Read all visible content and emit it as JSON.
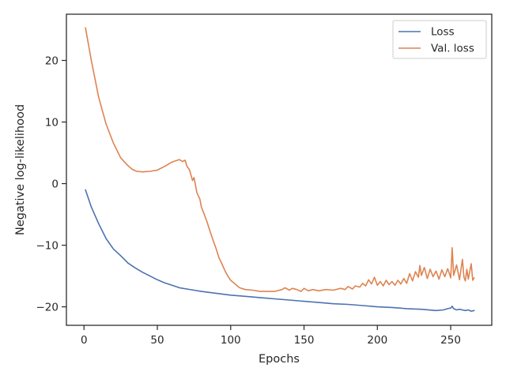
{
  "chart_data": {
    "type": "line",
    "xlabel": "Epochs",
    "ylabel": "Negative log-likelihood",
    "xlim": [
      -12,
      278
    ],
    "ylim": [
      -23,
      27.5
    ],
    "xticks": [
      0,
      50,
      100,
      150,
      200,
      250
    ],
    "yticks": [
      -20,
      -10,
      0,
      10,
      20
    ],
    "xtick_labels": [
      "0",
      "50",
      "100",
      "150",
      "200",
      "250"
    ],
    "ytick_labels": [
      "−20",
      "−10",
      "0",
      "10",
      "20"
    ],
    "legend_position": "top-right",
    "grid": false,
    "series": [
      {
        "name": "Loss",
        "color": "#4c72b0",
        "x": [
          1,
          5,
          10,
          15,
          20,
          25,
          30,
          35,
          40,
          45,
          50,
          55,
          60,
          65,
          70,
          75,
          80,
          90,
          100,
          110,
          120,
          130,
          140,
          150,
          160,
          170,
          180,
          190,
          200,
          210,
          220,
          230,
          240,
          245,
          248,
          250,
          251,
          252,
          254,
          256,
          258,
          260,
          262,
          264,
          266
        ],
        "y": [
          -1.0,
          -3.8,
          -6.5,
          -8.9,
          -10.6,
          -11.7,
          -12.9,
          -13.7,
          -14.4,
          -15.0,
          -15.6,
          -16.1,
          -16.5,
          -16.9,
          -17.1,
          -17.3,
          -17.5,
          -17.8,
          -18.1,
          -18.3,
          -18.5,
          -18.7,
          -18.9,
          -19.1,
          -19.3,
          -19.5,
          -19.6,
          -19.8,
          -20.0,
          -20.1,
          -20.3,
          -20.4,
          -20.6,
          -20.5,
          -20.3,
          -20.2,
          -19.9,
          -20.3,
          -20.5,
          -20.4,
          -20.5,
          -20.6,
          -20.5,
          -20.7,
          -20.6
        ]
      },
      {
        "name": "Val. loss",
        "color": "#dd8452",
        "x": [
          1,
          5,
          10,
          15,
          20,
          25,
          30,
          33,
          36,
          40,
          45,
          50,
          55,
          60,
          65,
          67,
          69,
          70,
          72,
          74,
          75,
          76,
          77,
          79,
          80,
          82,
          84,
          86,
          88,
          90,
          92,
          94,
          96,
          98,
          100,
          103,
          106,
          110,
          115,
          120,
          125,
          130,
          135,
          137,
          140,
          142,
          145,
          148,
          150,
          153,
          156,
          160,
          165,
          170,
          175,
          178,
          180,
          183,
          185,
          188,
          190,
          192,
          194,
          196,
          198,
          200,
          202,
          204,
          206,
          208,
          210,
          212,
          214,
          216,
          218,
          220,
          222,
          224,
          226,
          228,
          229,
          230,
          232,
          234,
          236,
          238,
          240,
          242,
          244,
          246,
          248,
          250,
          251,
          252,
          254,
          256,
          258,
          259,
          260,
          261,
          262,
          264,
          265,
          266
        ],
        "y": [
          25.3,
          20.0,
          14.0,
          9.7,
          6.6,
          4.2,
          2.9,
          2.3,
          2.0,
          1.9,
          2.0,
          2.2,
          2.8,
          3.5,
          3.9,
          3.6,
          3.8,
          2.9,
          2.2,
          0.5,
          1.0,
          -0.3,
          -1.5,
          -2.5,
          -3.8,
          -5.0,
          -6.3,
          -7.8,
          -9.2,
          -10.5,
          -12.0,
          -13.0,
          -14.1,
          -15.0,
          -15.7,
          -16.3,
          -16.9,
          -17.2,
          -17.3,
          -17.5,
          -17.5,
          -17.5,
          -17.2,
          -16.9,
          -17.3,
          -17.0,
          -17.2,
          -17.5,
          -17.0,
          -17.4,
          -17.2,
          -17.4,
          -17.2,
          -17.3,
          -17.0,
          -17.2,
          -16.7,
          -17.1,
          -16.6,
          -16.8,
          -16.2,
          -16.6,
          -15.6,
          -16.3,
          -15.2,
          -16.5,
          -15.9,
          -16.6,
          -15.7,
          -16.4,
          -15.9,
          -16.5,
          -15.7,
          -16.3,
          -15.4,
          -16.2,
          -14.6,
          -15.8,
          -14.3,
          -15.2,
          -13.3,
          -14.9,
          -13.6,
          -15.4,
          -13.9,
          -15.1,
          -14.2,
          -15.5,
          -14.0,
          -15.1,
          -13.8,
          -15.3,
          -10.4,
          -14.9,
          -13.2,
          -15.6,
          -12.3,
          -15.2,
          -15.8,
          -13.9,
          -15.5,
          -13.0,
          -15.7,
          -15.3
        ]
      }
    ]
  }
}
